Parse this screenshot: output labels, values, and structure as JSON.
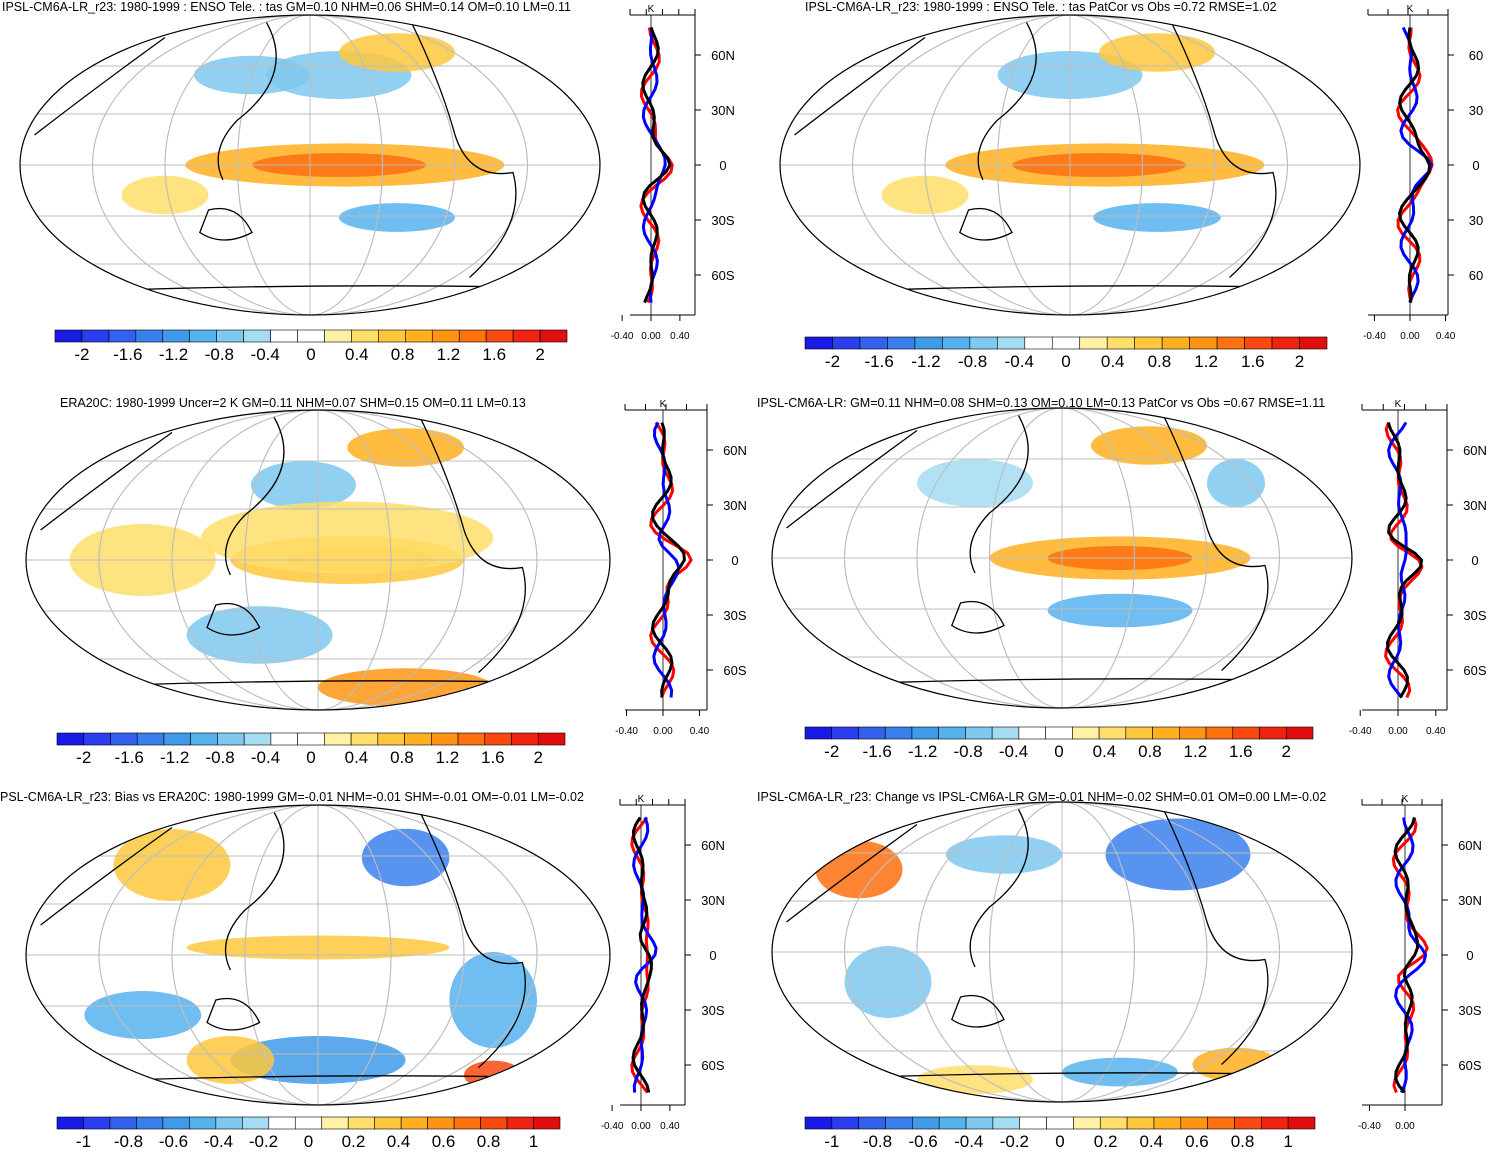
{
  "colors": {
    "palette": [
      "#1a1ae6",
      "#2a3ef0",
      "#3360ee",
      "#3a80ec",
      "#3f9ae8",
      "#56b2ee",
      "#7fc8f0",
      "#a6dcf2",
      "#ffffff",
      "#ffffff",
      "#fff2a6",
      "#ffde6a",
      "#ffc83c",
      "#ffb020",
      "#ff9414",
      "#ff7010",
      "#f84a10",
      "#ee2410",
      "#e00e0e"
    ],
    "land": "#000000",
    "grid": "#bdbdbd",
    "obs_line": "#ff0000",
    "model_line": "#0000ff",
    "mean_line": "#000000"
  },
  "panels": [
    {
      "title": "IPSL-CM6A-LR_r23: 1980-1999 : ENSO Tele. : tas GM=0.10 NHM=0.06 SHM=0.14 OM=0.10 LM=0.11",
      "colorbar": [
        "-2",
        "-1.6",
        "-1.2",
        "-0.8",
        "-0.4",
        "0",
        "0.4",
        "0.8",
        "1.2",
        "1.6",
        "2"
      ],
      "lat_ticks": [
        "60N",
        "30N",
        "0",
        "30S",
        "60S"
      ],
      "x_ticks": [
        "-0.40",
        "0.00",
        "0.40"
      ],
      "k_label": "K"
    },
    {
      "title": "IPSL-CM6A-LR_r23: 1980-1999 : ENSO Tele. : tas PatCor vs Obs =0.72 RMSE=1.02",
      "colorbar": [
        "-2",
        "-1.6",
        "-1.2",
        "-0.8",
        "-0.4",
        "0",
        "0.4",
        "0.8",
        "1.2",
        "1.6",
        "2"
      ],
      "lat_ticks": [
        "60",
        "30",
        "0",
        "30",
        "60"
      ],
      "x_ticks": [
        "-0.40",
        "0.00",
        "0.40"
      ],
      "k_label": "K"
    },
    {
      "title": "ERA20C: 1980-1999 Uncer=2 K GM=0.11 NHM=0.07 SHM=0.15 OM=0.11 LM=0.13",
      "colorbar": [
        "-2",
        "-1.6",
        "-1.2",
        "-0.8",
        "-0.4",
        "0",
        "0.4",
        "0.8",
        "1.2",
        "1.6",
        "2"
      ],
      "lat_ticks": [
        "60N",
        "30N",
        "0",
        "30S",
        "60S"
      ],
      "x_ticks": [
        "-0.40",
        "0.00",
        "0.40"
      ],
      "k_label": "K"
    },
    {
      "title": "IPSL-CM6A-LR: GM=0.11 NHM=0.08 SHM=0.13 OM=0.10 LM=0.13 PatCor vs Obs =0.67 RMSE=1.11",
      "colorbar": [
        "-2",
        "-1.6",
        "-1.2",
        "-0.8",
        "-0.4",
        "0",
        "0.4",
        "0.8",
        "1.2",
        "1.6",
        "2"
      ],
      "lat_ticks": [
        "60N",
        "30N",
        "0",
        "30S",
        "60S"
      ],
      "x_ticks": [
        "-0.40",
        "0.00",
        "0.40"
      ],
      "k_label": "K"
    },
    {
      "title": "PSL-CM6A-LR_r23: Bias vs ERA20C: 1980-1999 GM=-0.01 NHM=-0.01 SHM=-0.01 OM=-0.01 LM=-0.02",
      "colorbar": [
        "-1",
        "-0.8",
        "-0.6",
        "-0.4",
        "-0.2",
        "0",
        "0.2",
        "0.4",
        "0.6",
        "0.8",
        "1"
      ],
      "lat_ticks": [
        "60N",
        "30N",
        "0",
        "30S",
        "60S"
      ],
      "x_ticks": [
        "-0.40",
        "0.00",
        "0.40"
      ],
      "k_label": "K"
    },
    {
      "title": "IPSL-CM6A-LR_r23: Change vs IPSL-CM6A-LR GM=-0.01 NHM=-0.02 SHM=0.01 OM=0.00 LM=-0.02",
      "colorbar": [
        "-1",
        "-0.8",
        "-0.6",
        "-0.4",
        "-0.2",
        "0",
        "0.2",
        "0.4",
        "0.6",
        "0.8",
        "1"
      ],
      "lat_ticks": [
        "60N",
        "30N",
        "0",
        "30S",
        "60S"
      ],
      "x_ticks": [
        "-0.40",
        "0.00"
      ],
      "k_label": "K"
    }
  ]
}
